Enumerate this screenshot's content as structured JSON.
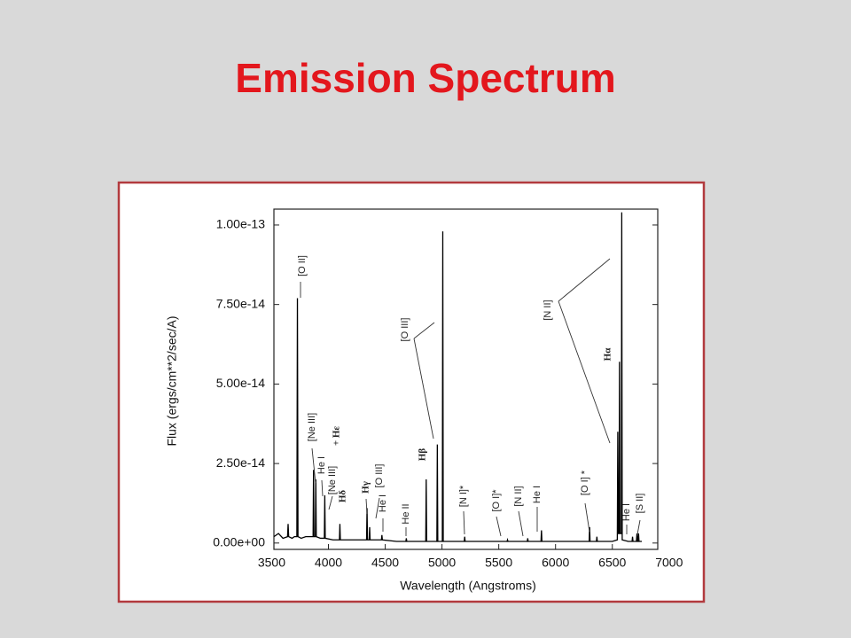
{
  "chart_data": {
    "type": "line",
    "title": "Emission Spectrum",
    "x_label": "Wavelength (Angstroms)",
    "y_label": "Flux (ergs/cm**2/sec/A)",
    "xlim": [
      3520,
      6900
    ],
    "ylim": [
      -2e-15,
      1.05e-13
    ],
    "xticks": [
      3500,
      4000,
      4500,
      5000,
      5500,
      6000,
      6500,
      7000
    ],
    "yticks": [
      {
        "value": 0,
        "label": "0.00e+00"
      },
      {
        "value": 2.5e-14,
        "label": "2.50e-14"
      },
      {
        "value": 5e-14,
        "label": "5.00e-14"
      },
      {
        "value": 7.5e-14,
        "label": "7.50e-14"
      },
      {
        "value": 1e-13,
        "label": "1.00e-13"
      }
    ],
    "series": [
      {
        "color": "#000000",
        "x": [
          3520,
          3560,
          3600,
          3640,
          3645,
          3650,
          3680,
          3700,
          3722,
          3727,
          3732,
          3760,
          3800,
          3865,
          3869,
          3873,
          3885,
          3889,
          3893,
          3930,
          3964,
          3968,
          3972,
          4040,
          4097,
          4101,
          4105,
          4200,
          4336,
          4340,
          4344,
          4359,
          4363,
          4367,
          4420,
          4467,
          4471,
          4475,
          4600,
          4682,
          4686,
          4690,
          4800,
          4857,
          4861,
          4865,
          4920,
          4955,
          4959,
          4963,
          5003,
          5007,
          5011,
          5100,
          5196,
          5200,
          5204,
          5400,
          5573,
          5577,
          5581,
          5700,
          5751,
          5755,
          5759,
          5820,
          5872,
          5876,
          5880,
          6100,
          6296,
          6300,
          6304,
          6360,
          6364,
          6368,
          6500,
          6544,
          6548,
          6552,
          6559,
          6563,
          6567,
          6579,
          6583,
          6587,
          6640,
          6674,
          6678,
          6682,
          6712,
          6717,
          6722,
          6727,
          6731,
          6735,
          6760
        ],
        "values": [
          2e-15,
          3e-15,
          1.5e-15,
          2e-15,
          6e-15,
          2e-15,
          1.5e-15,
          2e-15,
          2e-15,
          7.7e-14,
          2e-15,
          1.5e-15,
          2e-15,
          2e-15,
          2.3e-14,
          2e-15,
          2e-15,
          2e-14,
          2e-15,
          1.5e-15,
          1.5e-15,
          1.5e-14,
          1.5e-15,
          1e-15,
          1e-15,
          6e-15,
          1e-15,
          1e-15,
          1e-15,
          1.1e-14,
          1e-15,
          1e-15,
          5e-15,
          1e-15,
          1e-15,
          1e-15,
          2.5e-15,
          1e-15,
          5e-16,
          5e-16,
          1.5e-15,
          5e-16,
          5e-16,
          5e-16,
          2e-14,
          5e-16,
          5e-16,
          5e-16,
          3.1e-14,
          5e-16,
          5e-16,
          9.8e-14,
          5e-16,
          5e-16,
          5e-16,
          2e-15,
          5e-16,
          5e-16,
          5e-16,
          1e-15,
          5e-16,
          5e-16,
          5e-16,
          1.5e-15,
          5e-16,
          5e-16,
          5e-16,
          4e-15,
          5e-16,
          5e-16,
          5e-16,
          5e-15,
          5e-16,
          5e-16,
          2e-15,
          5e-16,
          5e-16,
          1e-15,
          3.5e-14,
          3e-15,
          3e-15,
          5.7e-14,
          3e-15,
          3e-15,
          1.04e-13,
          1e-15,
          5e-16,
          5e-16,
          2e-15,
          5e-16,
          5e-16,
          3e-15,
          5e-16,
          5e-16,
          3e-15,
          5e-16,
          5e-16
        ]
      }
    ],
    "annotations": [
      "[O II]",
      "[Ne III]",
      "He I",
      "[Ne III]",
      "+ Hε",
      "Hδ",
      "Hγ",
      "[O III]",
      "He I",
      "He II",
      "Hβ",
      "[O III]",
      "[N I]*",
      "[O I]*",
      "[N II]",
      "He I",
      "[O I] *",
      "[N II]",
      "Hα",
      "He I",
      "[S II]"
    ]
  }
}
